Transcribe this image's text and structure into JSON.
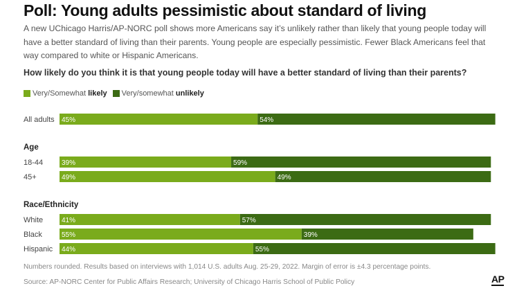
{
  "title": "Poll: Young adults pessimistic about standard of living",
  "subtitle": "A new UChicago Harris/AP-NORC poll shows more Americans say it’s unlikely rather than likely that young people today will have a better standard of living than their parents. Young people are especially pessimistic. Fewer Black Americans feel that way compared to white or Hispanic Americans.",
  "question": "How likely do you think it is that young people today will have a better standard of living than their parents?",
  "legend": {
    "likely_prefix": "Very/Somewhat ",
    "likely_bold": "likely",
    "unlikely_prefix": "Very/somewhat ",
    "unlikely_bold": "unlikely"
  },
  "colors": {
    "likely": "#7aab1c",
    "unlikely": "#3c6b14",
    "label_text": "#ffffff"
  },
  "footnote": "Numbers rounded. Results based on interviews with 1,014 U.S. adults Aug. 25-29, 2022. Margin of error is ±4.3 percentage points.",
  "source": "Source: AP-NORC Center for Public Affairs Research; University of Chicago Harris School of Public Policy",
  "logo_text": "AP",
  "chart_data": {
    "type": "bar",
    "orientation": "horizontal",
    "stacked": true,
    "series": [
      {
        "name": "Very/Somewhat likely",
        "key": "likely"
      },
      {
        "name": "Very/somewhat unlikely",
        "key": "unlikely"
      }
    ],
    "groups": [
      {
        "heading": "",
        "rows": [
          {
            "label": "All adults",
            "likely": 45,
            "unlikely": 54
          }
        ]
      },
      {
        "heading": "Age",
        "rows": [
          {
            "label": "18-44",
            "likely": 39,
            "unlikely": 59
          },
          {
            "label": "45+",
            "likely": 49,
            "unlikely": 49
          }
        ]
      },
      {
        "heading": "Race/Ethnicity",
        "rows": [
          {
            "label": "White",
            "likely": 41,
            "unlikely": 57
          },
          {
            "label": "Black",
            "likely": 55,
            "unlikely": 39
          },
          {
            "label": "Hispanic",
            "likely": 44,
            "unlikely": 55
          }
        ]
      }
    ],
    "value_suffix": "%",
    "xlim": [
      0,
      100
    ]
  }
}
